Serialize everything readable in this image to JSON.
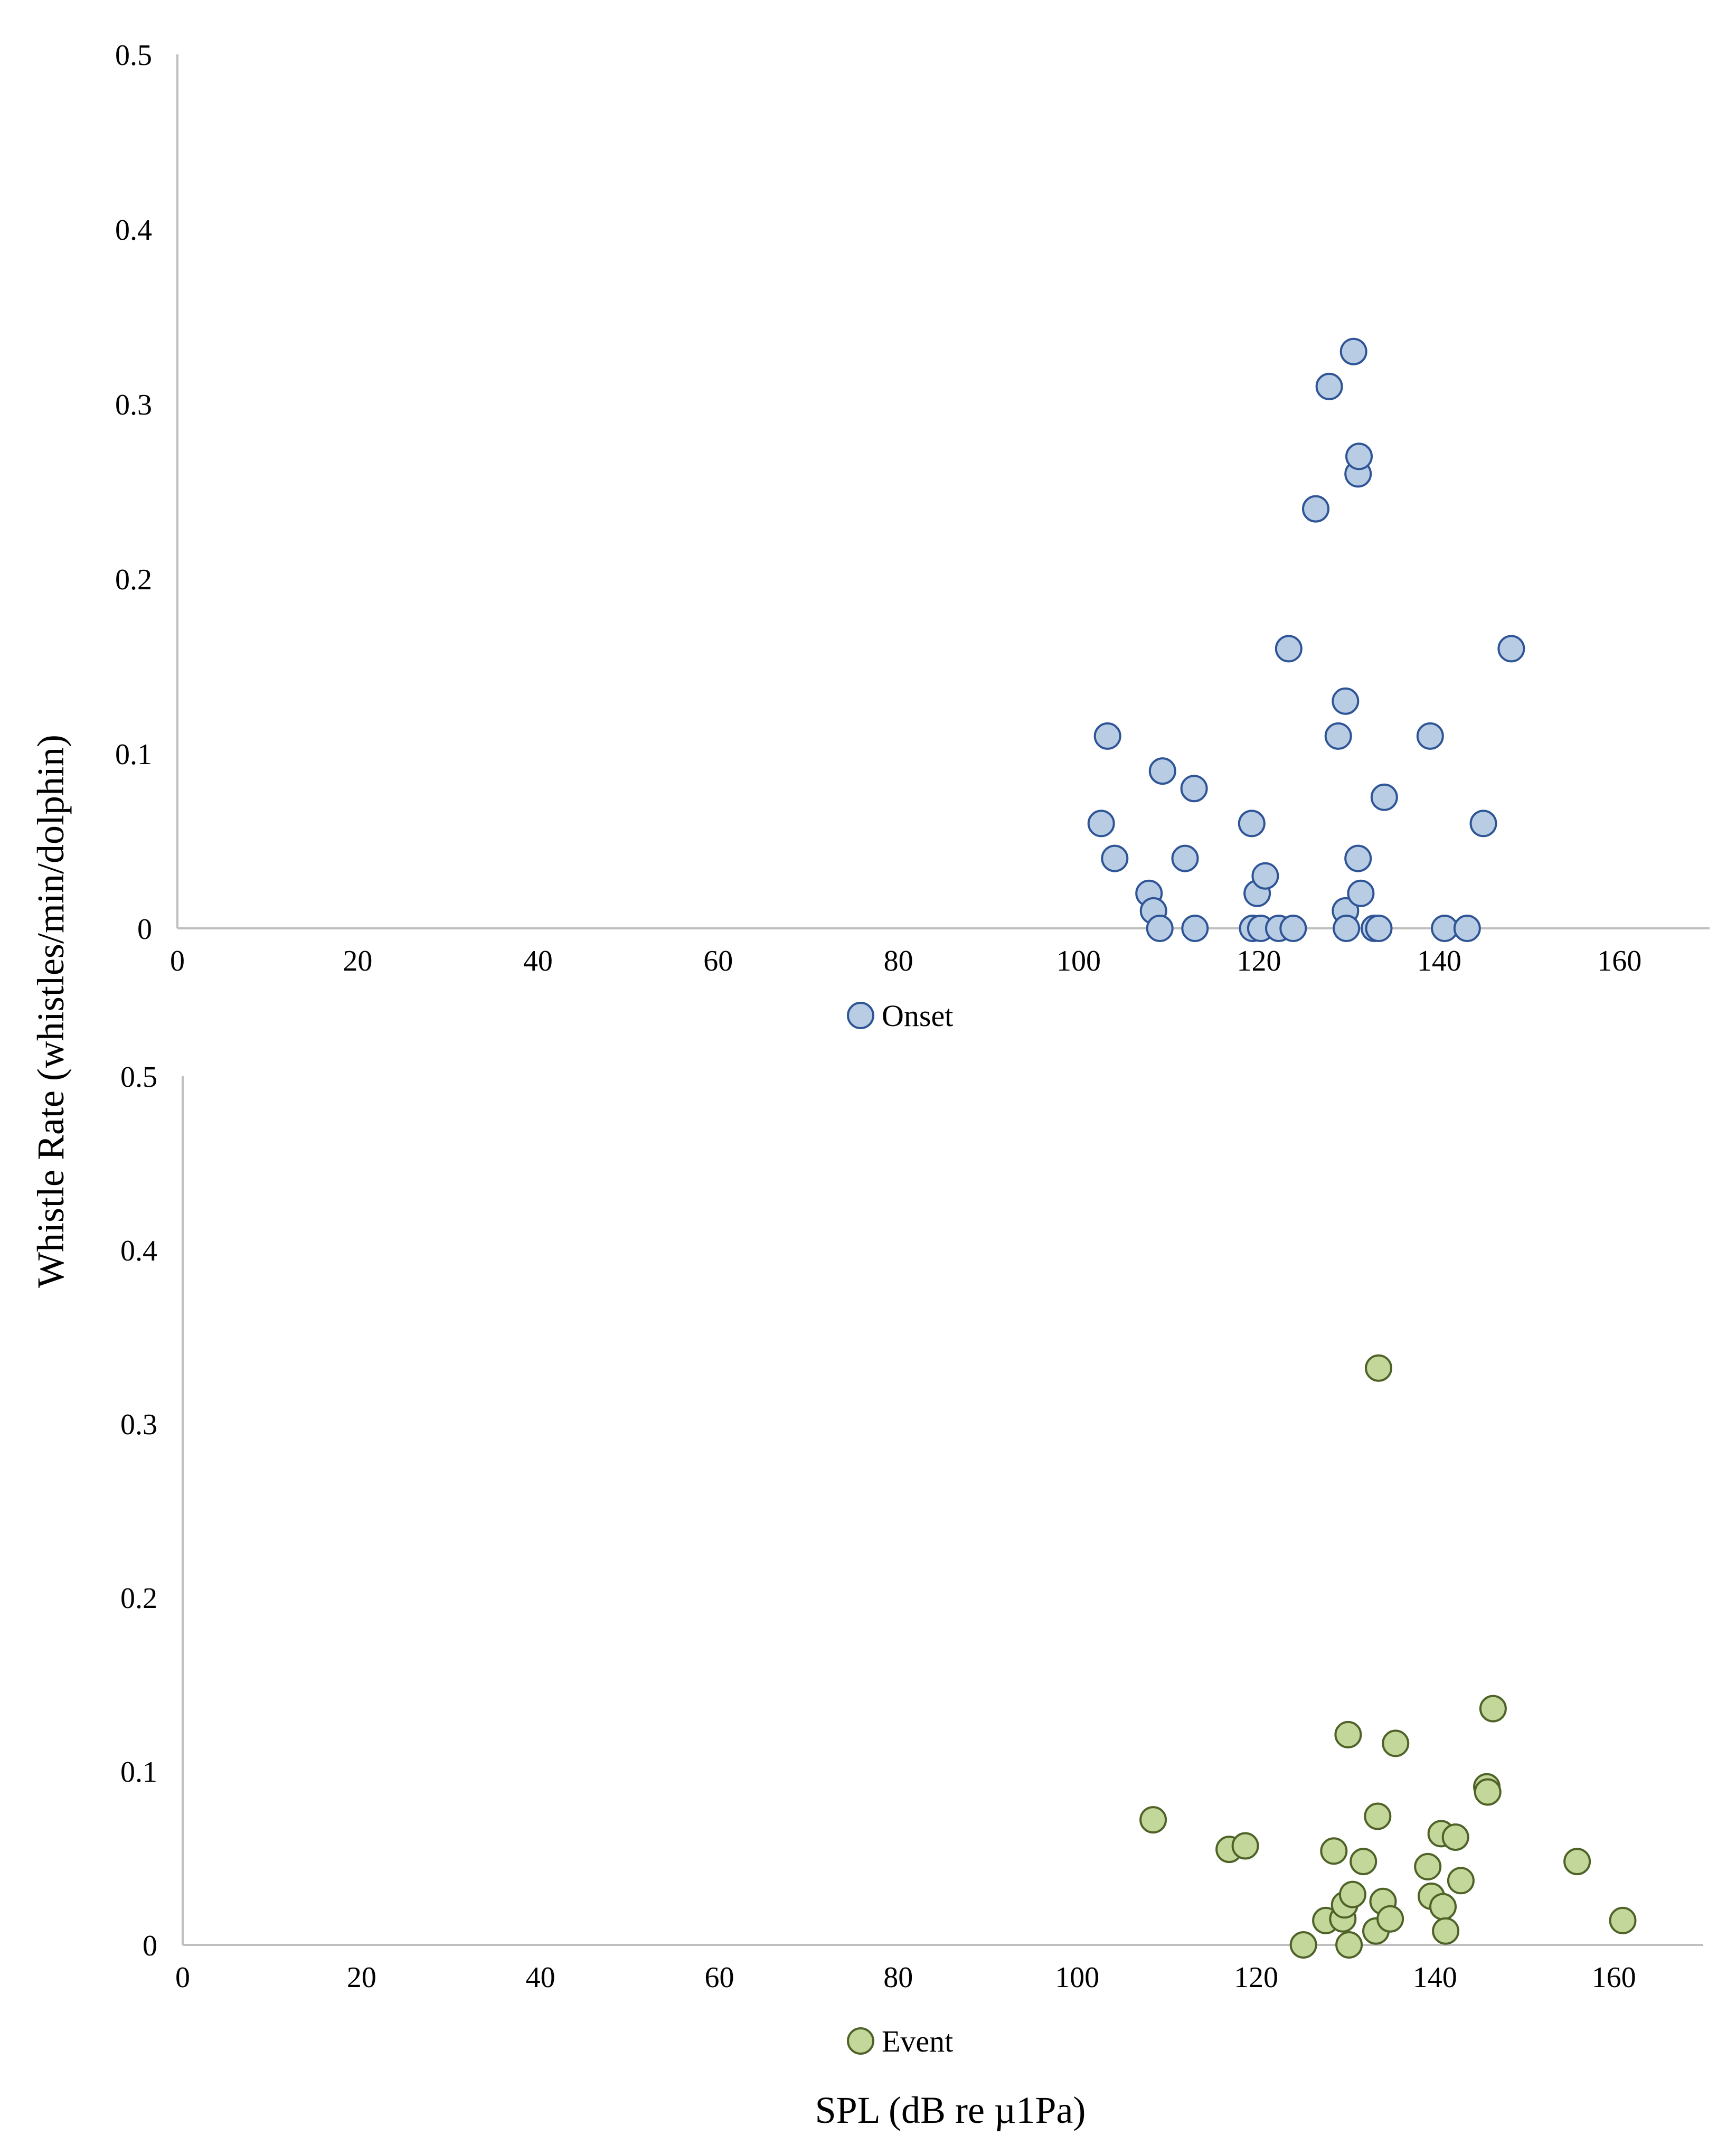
{
  "figure": {
    "shared_ylabel": "Whistle Rate (whistles/min/dolphin)",
    "shared_xlabel": "SPL (dB re µ1Pa)"
  },
  "chart_data": [
    {
      "type": "scatter",
      "id": "onset",
      "legend": "Onset",
      "color_fill": "#b8cce4",
      "color_stroke": "#2f5597",
      "xlim": [
        0,
        170
      ],
      "ylim": [
        0,
        0.5
      ],
      "xticks": [
        0,
        20,
        40,
        60,
        80,
        100,
        120,
        140,
        160
      ],
      "yticks": [
        0,
        0.1,
        0.2,
        0.3,
        0.4,
        0.5
      ],
      "points": [
        [
          102.5,
          0.06
        ],
        [
          103.2,
          0.11
        ],
        [
          104.0,
          0.04
        ],
        [
          107.8,
          0.02
        ],
        [
          108.3,
          0.01
        ],
        [
          109.0,
          0.0
        ],
        [
          109.3,
          0.09
        ],
        [
          111.8,
          0.04
        ],
        [
          112.8,
          0.08
        ],
        [
          112.9,
          0.0
        ],
        [
          119.2,
          0.06
        ],
        [
          119.3,
          0.0
        ],
        [
          119.8,
          0.02
        ],
        [
          120.2,
          0.0
        ],
        [
          120.7,
          0.03
        ],
        [
          122.2,
          0.0
        ],
        [
          123.3,
          0.16
        ],
        [
          123.8,
          0.0
        ],
        [
          126.3,
          0.24
        ],
        [
          127.8,
          0.31
        ],
        [
          128.8,
          0.11
        ],
        [
          129.6,
          0.13
        ],
        [
          129.6,
          0.01
        ],
        [
          129.7,
          0.0
        ],
        [
          130.5,
          0.33
        ],
        [
          131.0,
          0.04
        ],
        [
          131.0,
          0.26
        ],
        [
          131.1,
          0.27
        ],
        [
          131.3,
          0.02
        ],
        [
          132.8,
          0.0
        ],
        [
          133.3,
          0.0
        ],
        [
          133.9,
          0.075
        ],
        [
          139.0,
          0.11
        ],
        [
          140.6,
          0.0
        ],
        [
          143.1,
          0.0
        ],
        [
          144.9,
          0.06
        ],
        [
          148.0,
          0.16
        ]
      ]
    },
    {
      "type": "scatter",
      "id": "event",
      "legend": "Event",
      "color_fill": "#c4d79b",
      "color_stroke": "#4f6228",
      "xlim": [
        0,
        170
      ],
      "ylim": [
        0,
        0.5
      ],
      "xticks": [
        0,
        20,
        40,
        60,
        80,
        100,
        120,
        140,
        160
      ],
      "yticks": [
        0,
        0.1,
        0.2,
        0.3,
        0.4,
        0.5
      ],
      "points": [
        [
          108.5,
          0.072
        ],
        [
          117.0,
          0.055
        ],
        [
          118.8,
          0.057
        ],
        [
          125.3,
          0.0
        ],
        [
          127.8,
          0.014
        ],
        [
          128.7,
          0.054
        ],
        [
          129.7,
          0.015
        ],
        [
          129.9,
          0.023
        ],
        [
          130.3,
          0.121
        ],
        [
          130.4,
          0.0
        ],
        [
          130.8,
          0.029
        ],
        [
          132.0,
          0.048
        ],
        [
          133.4,
          0.008
        ],
        [
          133.6,
          0.074
        ],
        [
          133.7,
          0.332
        ],
        [
          134.2,
          0.025
        ],
        [
          135.0,
          0.015
        ],
        [
          135.6,
          0.116
        ],
        [
          139.2,
          0.045
        ],
        [
          139.6,
          0.028
        ],
        [
          140.7,
          0.064
        ],
        [
          140.9,
          0.022
        ],
        [
          141.2,
          0.008
        ],
        [
          142.3,
          0.062
        ],
        [
          142.9,
          0.037
        ],
        [
          145.8,
          0.091
        ],
        [
          145.9,
          0.088
        ],
        [
          146.5,
          0.136
        ],
        [
          155.9,
          0.048
        ],
        [
          161.0,
          0.014
        ]
      ]
    }
  ]
}
